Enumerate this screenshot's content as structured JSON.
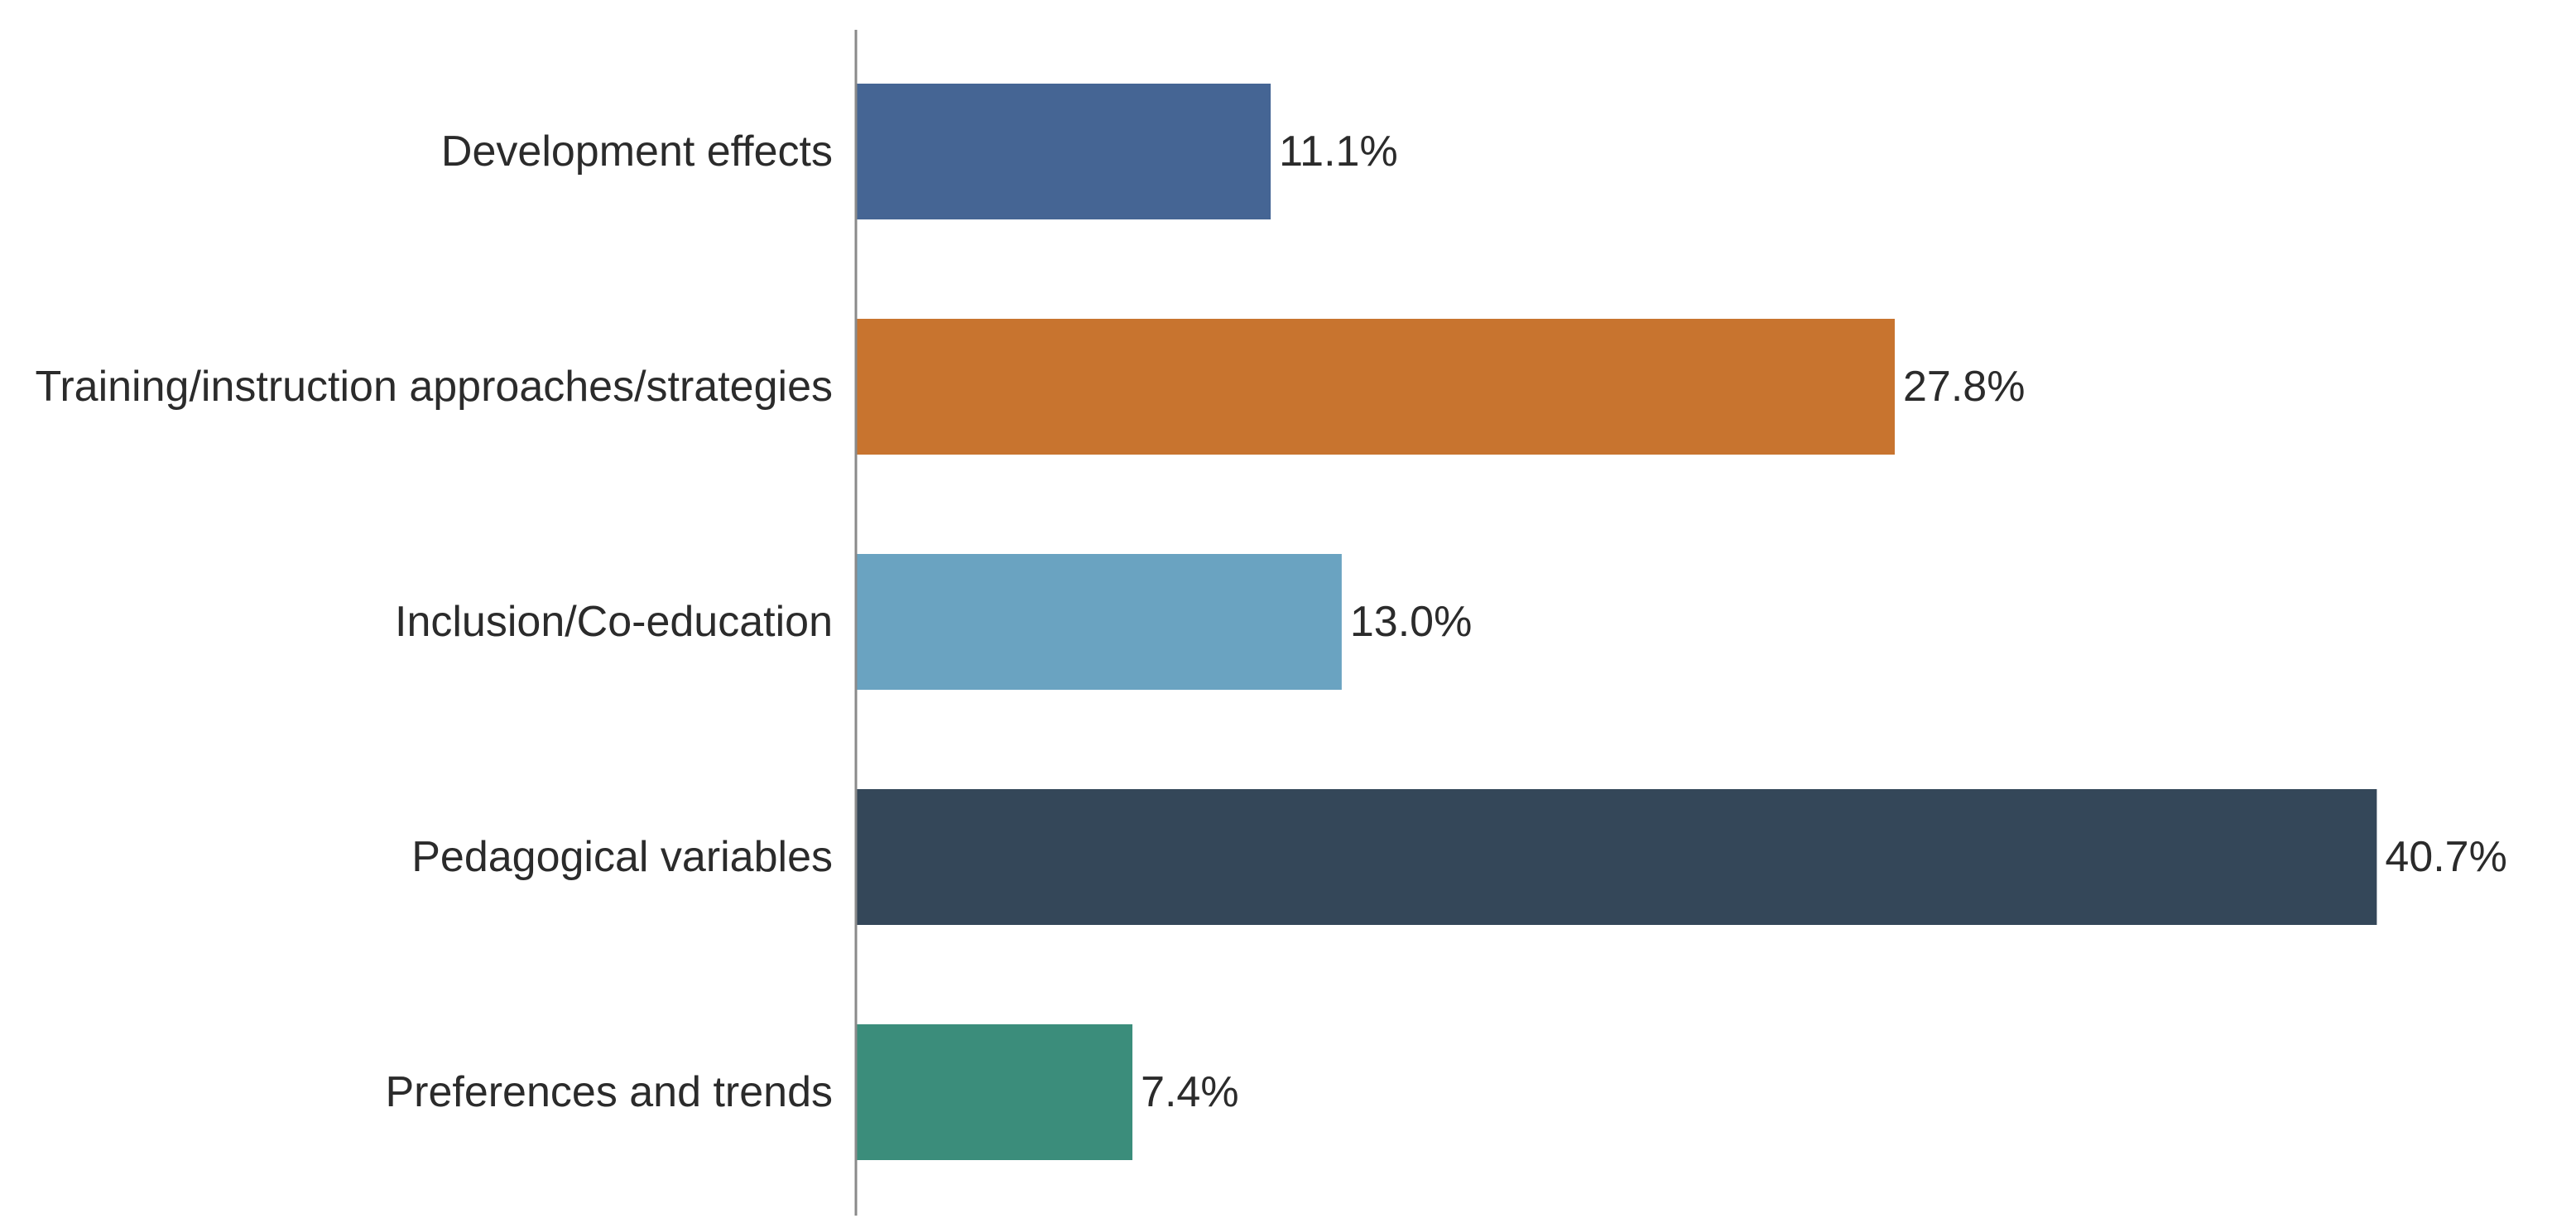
{
  "chart_data": {
    "type": "bar",
    "orientation": "horizontal",
    "title": "",
    "xlabel": "",
    "ylabel": "",
    "unit": "%",
    "xlim": [
      0,
      41.6
    ],
    "grid": false,
    "categories": [
      "Development effects",
      "Training/instruction approaches/strategies",
      "Inclusion/Co-education",
      "Pedagogical variables",
      "Preferences and trends"
    ],
    "values": [
      11.1,
      27.8,
      13.0,
      40.7,
      7.4
    ],
    "value_labels": [
      "11.1%",
      "27.8%",
      "13.0%",
      "40.7%",
      "7.4%"
    ],
    "colors": [
      "#456594",
      "#c8742f",
      "#6aa3c1",
      "#344759",
      "#3b8d7b"
    ]
  }
}
